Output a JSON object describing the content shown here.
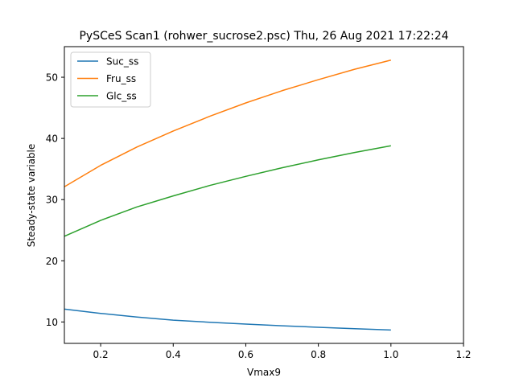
{
  "chart_data": {
    "type": "line",
    "title": "PySCeS Scan1 (rohwer_sucrose2.psc) Thu, 26 Aug 2021 17:22:24",
    "xlabel": "Vmax9",
    "ylabel": "Steady-state variable",
    "xlim": [
      0.1,
      1.2
    ],
    "ylim": [
      6.5,
      55.0
    ],
    "xticks": [
      0.2,
      0.4,
      0.6,
      0.8,
      1.0,
      1.2
    ],
    "xtick_labels": [
      "0.2",
      "0.4",
      "0.6",
      "0.8",
      "1.0",
      "1.2"
    ],
    "yticks": [
      10,
      20,
      30,
      40,
      50
    ],
    "ytick_labels": [
      "10",
      "20",
      "30",
      "40",
      "50"
    ],
    "grid": false,
    "legend_position": "top-left",
    "x": [
      0.1,
      0.2,
      0.3,
      0.4,
      0.5,
      0.6,
      0.7,
      0.8,
      0.9,
      1.0
    ],
    "series": [
      {
        "name": "Suc_ss",
        "color": "#1f77b4",
        "values": [
          12.1,
          11.4,
          10.8,
          10.3,
          9.95,
          9.65,
          9.38,
          9.13,
          8.9,
          8.68
        ]
      },
      {
        "name": "Fru_ss",
        "color": "#ff7f0e",
        "values": [
          32.1,
          35.6,
          38.6,
          41.2,
          43.6,
          45.8,
          47.8,
          49.6,
          51.3,
          52.8
        ]
      },
      {
        "name": "Glc_ss",
        "color": "#2ca02c",
        "values": [
          24.0,
          26.6,
          28.8,
          30.6,
          32.3,
          33.8,
          35.2,
          36.5,
          37.7,
          38.8
        ]
      }
    ]
  }
}
